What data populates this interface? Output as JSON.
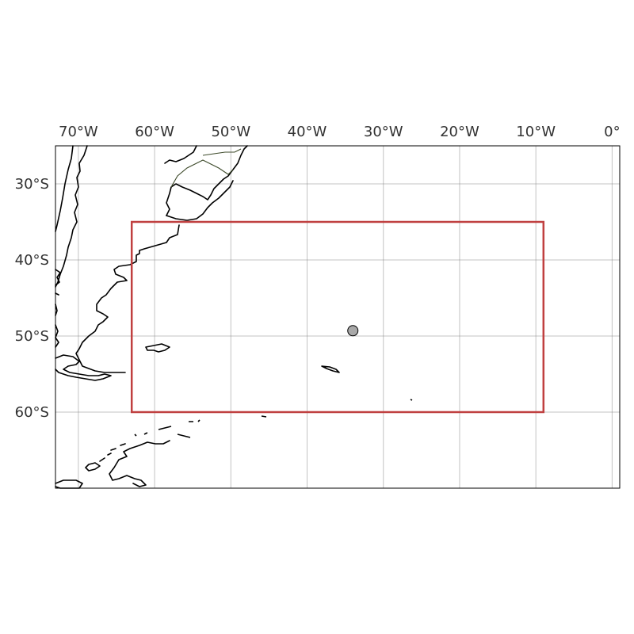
{
  "map": {
    "type": "map",
    "projection": "PlateCarree",
    "extent": {
      "lon_min": -73,
      "lon_max": 1,
      "lat_min": -70,
      "lat_max": -25
    },
    "lon_ticks": [
      {
        "value": -70,
        "label": "70°W"
      },
      {
        "value": -60,
        "label": "60°W"
      },
      {
        "value": -50,
        "label": "50°W"
      },
      {
        "value": -40,
        "label": "40°W"
      },
      {
        "value": -30,
        "label": "30°W"
      },
      {
        "value": -20,
        "label": "20°W"
      },
      {
        "value": -10,
        "label": "10°W"
      },
      {
        "value": 0,
        "label": "0°"
      }
    ],
    "lat_ticks": [
      {
        "value": -30,
        "label": "30°S"
      },
      {
        "value": -40,
        "label": "40°S"
      },
      {
        "value": -50,
        "label": "50°S"
      },
      {
        "value": -60,
        "label": "60°S"
      }
    ],
    "region_box": {
      "lon_min": -63,
      "lon_max": -9,
      "lat_min": -60,
      "lat_max": -35,
      "color": "#c04040"
    },
    "point": {
      "lon": -34,
      "lat": -49.3,
      "color": "#a8a8a8"
    },
    "gridlines": true
  }
}
